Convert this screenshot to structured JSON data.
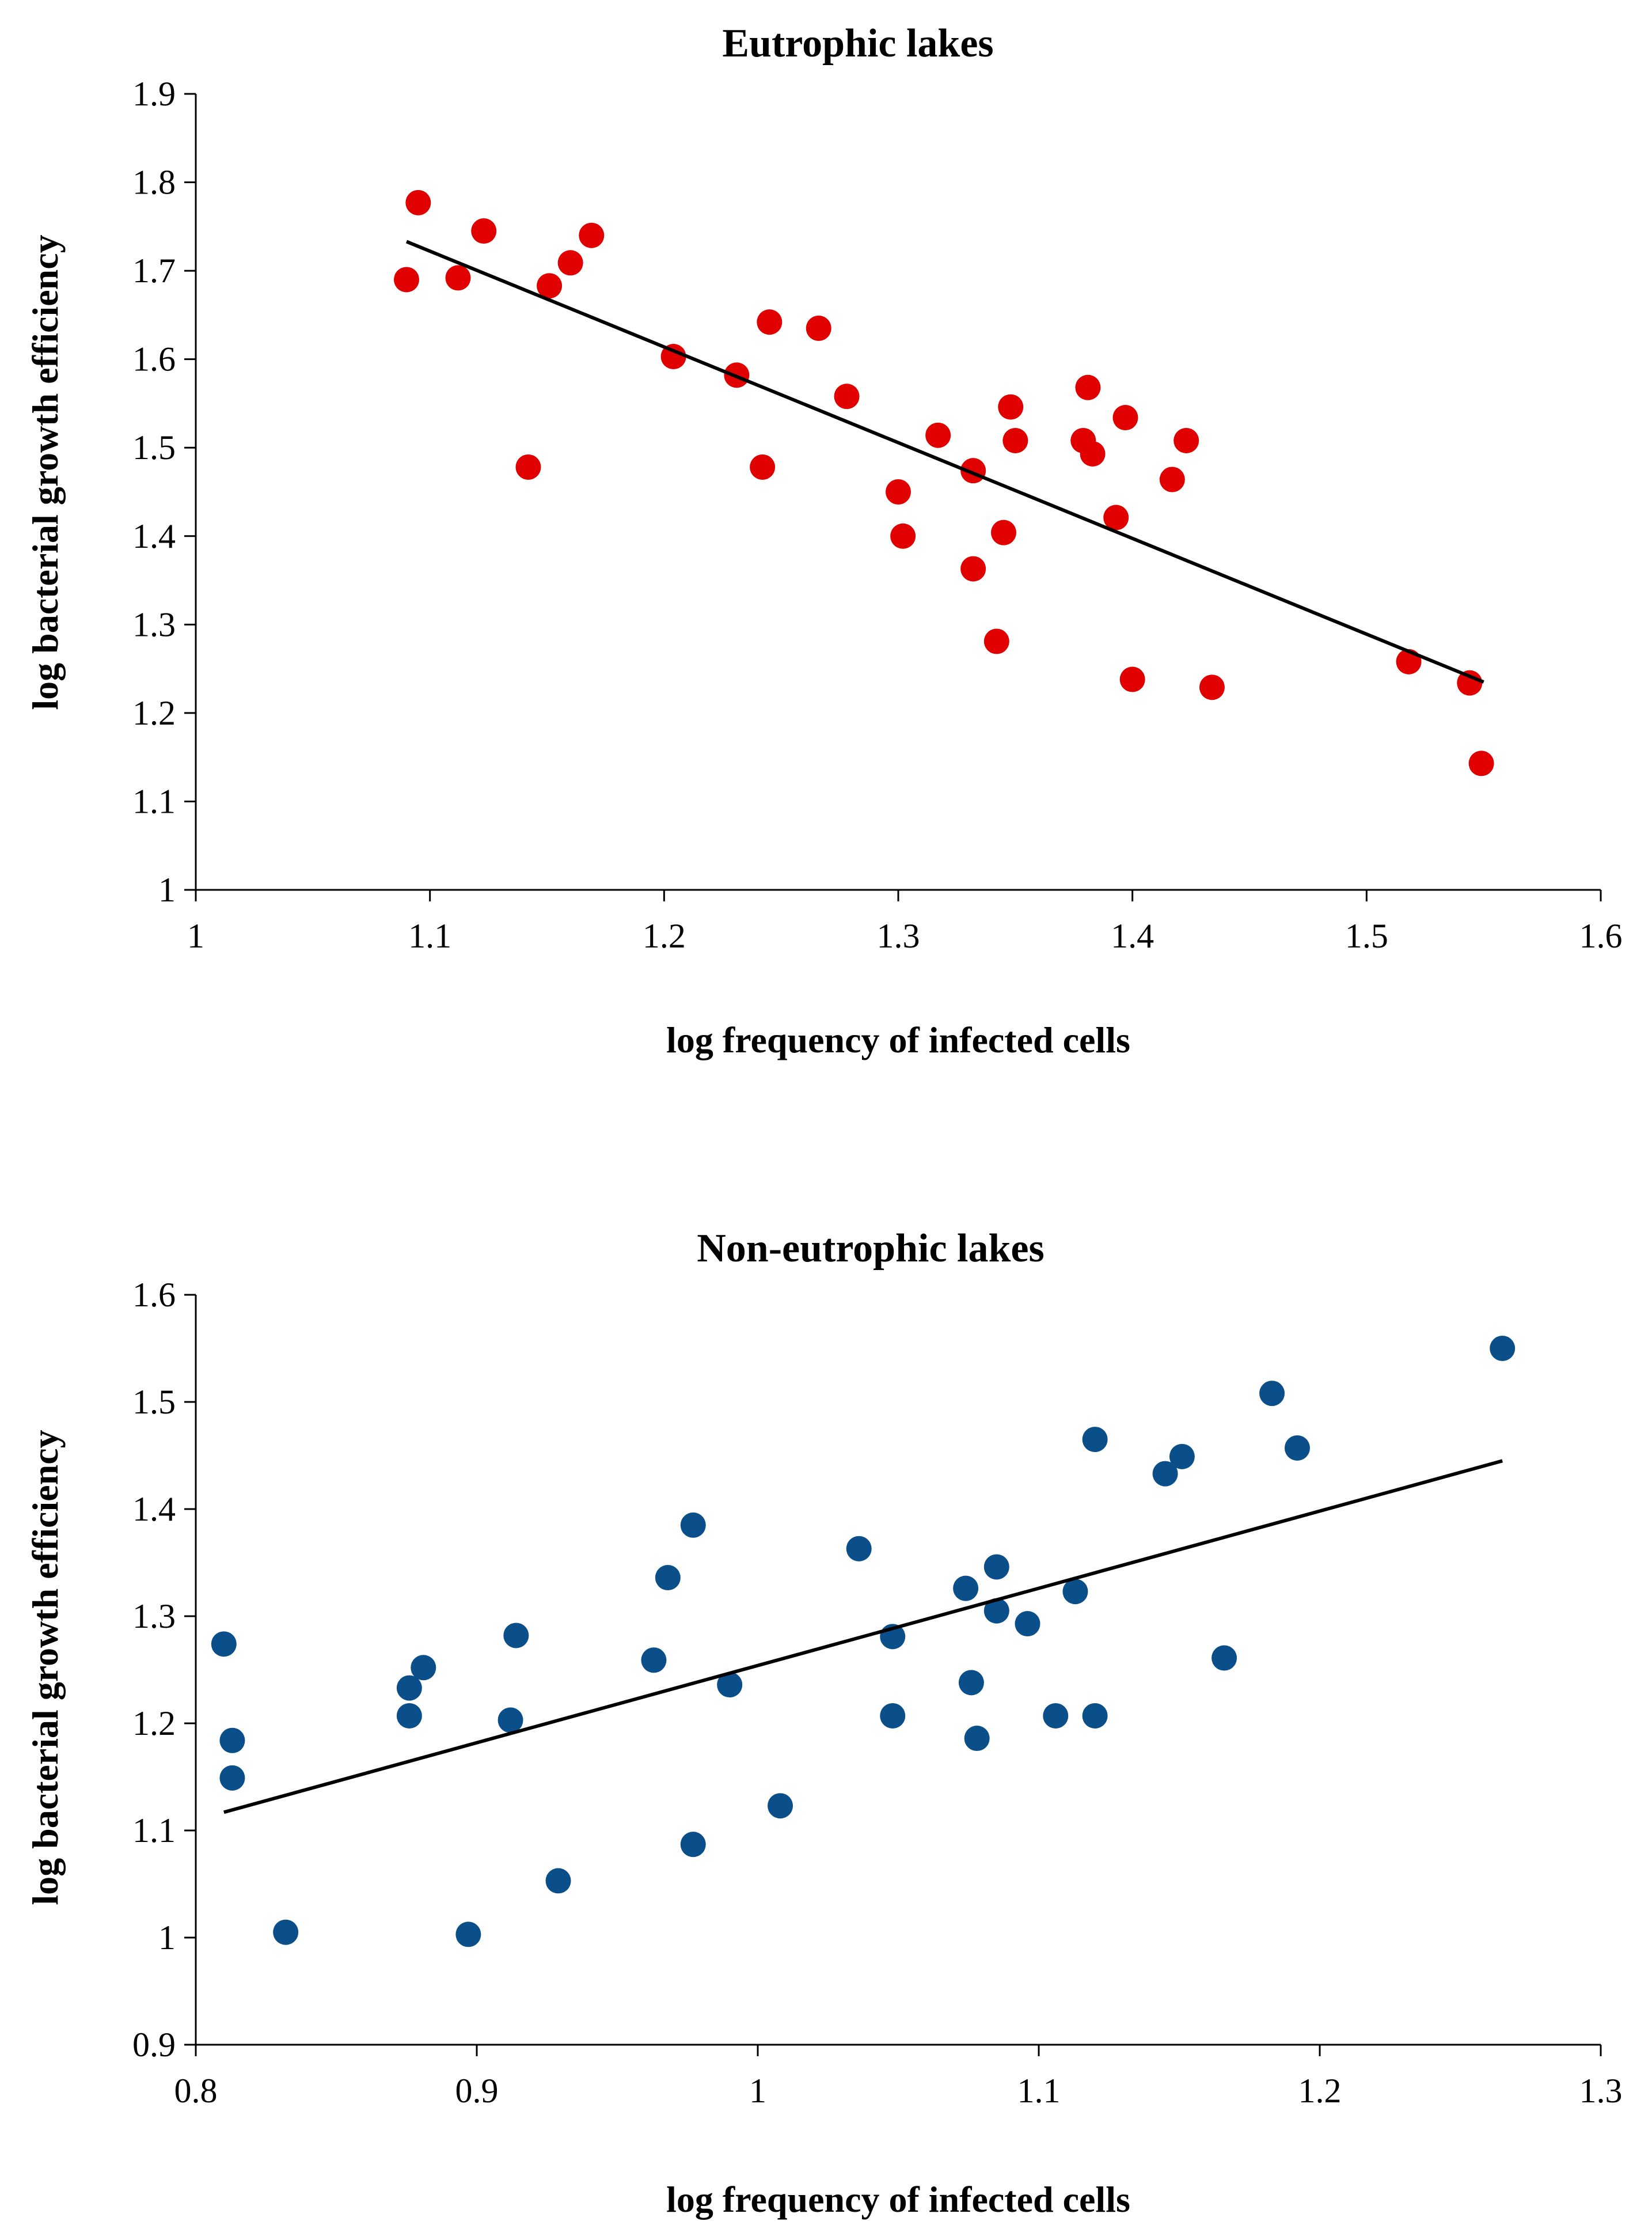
{
  "chart_data": [
    {
      "type": "scatter",
      "title": "Eutrophic lakes",
      "xlabel": "log frequency of infected cells",
      "ylabel": "log bacterial growth efficiency",
      "xlim": [
        1,
        1.6
      ],
      "ylim": [
        1,
        1.9
      ],
      "xticks": [
        "1",
        "1.1",
        "1.2",
        "1.3",
        "1.4",
        "1.5",
        "1.6"
      ],
      "yticks": [
        "1",
        "1.1",
        "1.2",
        "1.3",
        "1.4",
        "1.5",
        "1.6",
        "1.7",
        "1.8",
        "1.9"
      ],
      "grid": false,
      "legend": "none",
      "color": "#e00000",
      "points": [
        [
          1.09,
          1.69
        ],
        [
          1.095,
          1.777
        ],
        [
          1.112,
          1.692
        ],
        [
          1.123,
          1.745
        ],
        [
          1.142,
          1.478
        ],
        [
          1.151,
          1.683
        ],
        [
          1.16,
          1.709
        ],
        [
          1.169,
          1.74
        ],
        [
          1.204,
          1.603
        ],
        [
          1.231,
          1.582
        ],
        [
          1.242,
          1.478
        ],
        [
          1.245,
          1.642
        ],
        [
          1.266,
          1.635
        ],
        [
          1.278,
          1.558
        ],
        [
          1.3,
          1.45
        ],
        [
          1.302,
          1.4
        ],
        [
          1.317,
          1.514
        ],
        [
          1.332,
          1.474
        ],
        [
          1.332,
          1.363
        ],
        [
          1.342,
          1.281
        ],
        [
          1.345,
          1.404
        ],
        [
          1.348,
          1.546
        ],
        [
          1.35,
          1.508
        ],
        [
          1.379,
          1.508
        ],
        [
          1.381,
          1.568
        ],
        [
          1.383,
          1.493
        ],
        [
          1.393,
          1.421
        ],
        [
          1.397,
          1.534
        ],
        [
          1.4,
          1.238
        ],
        [
          1.417,
          1.464
        ],
        [
          1.423,
          1.508
        ],
        [
          1.434,
          1.229
        ],
        [
          1.518,
          1.258
        ],
        [
          1.544,
          1.234
        ],
        [
          1.549,
          1.143
        ]
      ],
      "trendline": {
        "x": [
          1.09,
          1.55
        ],
        "y": [
          1.733,
          1.235
        ]
      }
    },
    {
      "type": "scatter",
      "title": "Non-eutrophic lakes",
      "xlabel": "log frequency of infected cells",
      "ylabel": "log bacterial growth efficiency",
      "xlim": [
        0.8,
        1.3
      ],
      "ylim": [
        0.9,
        1.6
      ],
      "xticks": [
        "0.8",
        "0.9",
        "1",
        "1.1",
        "1.2",
        "1.3"
      ],
      "yticks": [
        "0.9",
        "1",
        "1.1",
        "1.2",
        "1.3",
        "1.4",
        "1.5",
        "1.6"
      ],
      "grid": false,
      "legend": "none",
      "color": "#0b4f8a",
      "points": [
        [
          0.81,
          1.274
        ],
        [
          0.813,
          1.184
        ],
        [
          0.813,
          1.149
        ],
        [
          0.832,
          1.005
        ],
        [
          0.876,
          1.233
        ],
        [
          0.876,
          1.207
        ],
        [
          0.881,
          1.252
        ],
        [
          0.897,
          1.003
        ],
        [
          0.912,
          1.203
        ],
        [
          0.914,
          1.282
        ],
        [
          0.929,
          1.053
        ],
        [
          0.963,
          1.259
        ],
        [
          0.968,
          1.336
        ],
        [
          0.977,
          1.385
        ],
        [
          0.977,
          1.087
        ],
        [
          0.99,
          1.236
        ],
        [
          1.008,
          1.123
        ],
        [
          1.036,
          1.363
        ],
        [
          1.048,
          1.281
        ],
        [
          1.048,
          1.207
        ],
        [
          1.074,
          1.326
        ],
        [
          1.076,
          1.238
        ],
        [
          1.078,
          1.186
        ],
        [
          1.085,
          1.346
        ],
        [
          1.085,
          1.305
        ],
        [
          1.096,
          1.293
        ],
        [
          1.106,
          1.207
        ],
        [
          1.113,
          1.323
        ],
        [
          1.12,
          1.465
        ],
        [
          1.12,
          1.207
        ],
        [
          1.145,
          1.433
        ],
        [
          1.151,
          1.449
        ],
        [
          1.166,
          1.261
        ],
        [
          1.183,
          1.508
        ],
        [
          1.192,
          1.457
        ],
        [
          1.265,
          1.55
        ]
      ],
      "trendline": {
        "x": [
          0.81,
          1.265
        ],
        "y": [
          1.117,
          1.445
        ]
      }
    }
  ]
}
